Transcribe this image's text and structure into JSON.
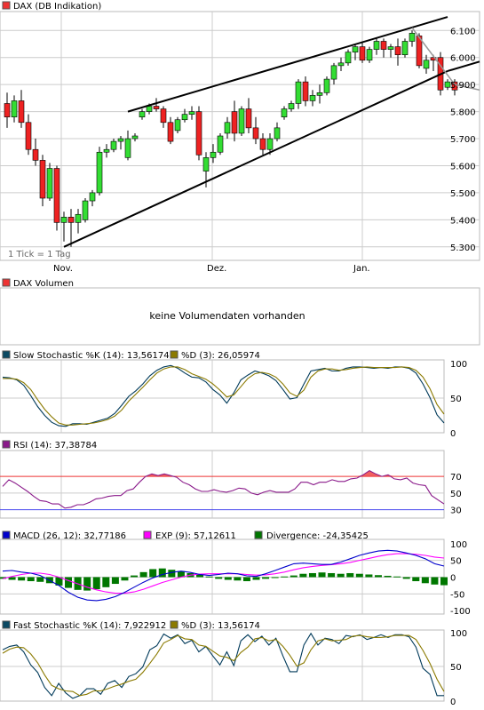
{
  "colors": {
    "up": "#33dd33",
    "down": "#ee2222",
    "grid": "#cccccc",
    "frame": "#bbbbbb",
    "line_dark": "#003a5a",
    "line_olive": "#8b7a00",
    "rsi": "#8a1a8a",
    "rsi_fill": "#ee4444",
    "rsi_70": "#ee3333",
    "rsi_30": "#4444ee",
    "macd": "#0000cc",
    "macd_ema": "#ff00ff",
    "divergence": "#007700",
    "trend": "#000000",
    "trend_gray": "#999999"
  },
  "x_labels": [
    "Nov.",
    "Dez.",
    "Jan."
  ],
  "main": {
    "legend": "DAX (DB Indikation)",
    "tick_note": "1 Tick = 1 Tag",
    "y_ticks": [
      "6.100",
      "6.000",
      "5.900",
      "5.800",
      "5.700",
      "5.600",
      "5.500",
      "5.400",
      "5.300"
    ]
  },
  "volume": {
    "legend": "DAX Volumen",
    "message": "keine Volumendaten vorhanden"
  },
  "slow_stoch": {
    "legend_k": "Slow Stochastic %K (14): 13,56174",
    "legend_d": "%D (3): 26,05974",
    "y_ticks": [
      "100",
      "50",
      "0"
    ]
  },
  "rsi": {
    "legend": "RSI (14): 37,38784",
    "y_ticks": [
      "70",
      "50",
      "30"
    ]
  },
  "macd": {
    "legend_macd": "MACD (26, 12): 32,77186",
    "legend_ema": "EXP (9): 57,12611",
    "legend_div": "Divergence: -24,35425",
    "y_ticks": [
      "100",
      "50",
      "0",
      "-50",
      "-100"
    ]
  },
  "fast_stoch": {
    "legend_k": "Fast Stochastic %K (14): 7,922912",
    "legend_d": "%D (3): 13,56174",
    "y_ticks": [
      "100",
      "50",
      "0"
    ]
  },
  "chart_data": [
    {
      "type": "candlestick",
      "title": "DAX (DB Indikation)",
      "ylim": [
        5250,
        6170
      ],
      "x_labels": [
        "Nov.",
        "Dez.",
        "Jan."
      ],
      "ohlc": [
        [
          5830,
          5870,
          5740,
          5780
        ],
        [
          5780,
          5860,
          5760,
          5840
        ],
        [
          5840,
          5880,
          5740,
          5760
        ],
        [
          5760,
          5790,
          5640,
          5660
        ],
        [
          5660,
          5700,
          5600,
          5620
        ],
        [
          5620,
          5640,
          5450,
          5480
        ],
        [
          5480,
          5610,
          5470,
          5590
        ],
        [
          5590,
          5600,
          5360,
          5390
        ],
        [
          5390,
          5430,
          5320,
          5410
        ],
        [
          5410,
          5440,
          5300,
          5390
        ],
        [
          5390,
          5440,
          5350,
          5420
        ],
        [
          5400,
          5480,
          5390,
          5470
        ],
        [
          5470,
          5510,
          5450,
          5500
        ],
        [
          5500,
          5670,
          5490,
          5650
        ],
        [
          5650,
          5680,
          5630,
          5660
        ],
        [
          5660,
          5700,
          5650,
          5690
        ],
        [
          5690,
          5710,
          5660,
          5700
        ],
        [
          5630,
          5730,
          5620,
          5700
        ],
        [
          5700,
          5720,
          5690,
          5710
        ],
        [
          5780,
          5810,
          5770,
          5800
        ],
        [
          5800,
          5830,
          5790,
          5820
        ],
        [
          5820,
          5850,
          5800,
          5810
        ],
        [
          5810,
          5820,
          5740,
          5760
        ],
        [
          5760,
          5780,
          5680,
          5690
        ],
        [
          5730,
          5780,
          5720,
          5770
        ],
        [
          5770,
          5810,
          5760,
          5790
        ],
        [
          5790,
          5820,
          5770,
          5800
        ],
        [
          5800,
          5820,
          5620,
          5640
        ],
        [
          5580,
          5650,
          5520,
          5630
        ],
        [
          5630,
          5680,
          5610,
          5650
        ],
        [
          5650,
          5720,
          5640,
          5710
        ],
        [
          5720,
          5780,
          5700,
          5760
        ],
        [
          5800,
          5840,
          5690,
          5720
        ],
        [
          5720,
          5820,
          5710,
          5810
        ],
        [
          5810,
          5850,
          5720,
          5740
        ],
        [
          5740,
          5780,
          5680,
          5700
        ],
        [
          5700,
          5720,
          5640,
          5660
        ],
        [
          5660,
          5720,
          5640,
          5700
        ],
        [
          5700,
          5760,
          5690,
          5740
        ],
        [
          5780,
          5820,
          5770,
          5810
        ],
        [
          5810,
          5840,
          5800,
          5830
        ],
        [
          5830,
          5920,
          5810,
          5910
        ],
        [
          5910,
          5930,
          5820,
          5840
        ],
        [
          5840,
          5880,
          5820,
          5860
        ],
        [
          5860,
          5900,
          5830,
          5870
        ],
        [
          5870,
          5930,
          5860,
          5920
        ],
        [
          5920,
          5980,
          5900,
          5970
        ],
        [
          5970,
          6000,
          5950,
          5980
        ],
        [
          5980,
          6030,
          5970,
          6020
        ],
        [
          6020,
          6050,
          5990,
          6040
        ],
        [
          6040,
          6060,
          5980,
          5990
        ],
        [
          5990,
          6040,
          5980,
          6030
        ],
        [
          6030,
          6070,
          6010,
          6060
        ],
        [
          6060,
          6070,
          6000,
          6030
        ],
        [
          6030,
          6050,
          6000,
          6040
        ],
        [
          6040,
          6070,
          5970,
          6010
        ],
        [
          6010,
          6070,
          6000,
          6060
        ],
        [
          6060,
          6100,
          6040,
          6090
        ],
        [
          6080,
          6090,
          5960,
          5970
        ],
        [
          5960,
          6010,
          5940,
          5990
        ],
        [
          6000,
          6010,
          5950,
          5990
        ],
        [
          6000,
          6020,
          5860,
          5880
        ],
        [
          5890,
          5920,
          5880,
          5910
        ],
        [
          5910,
          5920,
          5860,
          5880
        ]
      ],
      "trendlines": [
        {
          "from": [
            8,
            5300
          ],
          "to": [
            62,
            5950
          ]
        },
        {
          "from": [
            17,
            5800
          ],
          "to": [
            62,
            6150
          ]
        },
        {
          "from": [
            57,
            6110
          ],
          "to": [
            63,
            5900
          ]
        }
      ]
    },
    {
      "type": "line",
      "title": "Slow Stochastic",
      "ylim": [
        0,
        100
      ],
      "series": [
        {
          "name": "Slow Stochastic %K (14)",
          "values": [
            80,
            79,
            76,
            68,
            53,
            37,
            24,
            14,
            9,
            8,
            12,
            12,
            11,
            14,
            17,
            20,
            27,
            39,
            52,
            60,
            70,
            82,
            90,
            95,
            97,
            93,
            86,
            80,
            79,
            73,
            62,
            54,
            42,
            57,
            76,
            83,
            89,
            86,
            82,
            75,
            62,
            48,
            50,
            70,
            89,
            91,
            93,
            89,
            89,
            93,
            95,
            95,
            94,
            93,
            94,
            93,
            95,
            95,
            93,
            86,
            70,
            50,
            25,
            13
          ]
        },
        {
          "name": "%D (3)",
          "values": [
            78,
            78,
            77,
            72,
            62,
            47,
            33,
            22,
            13,
            10,
            10,
            11,
            12,
            13,
            15,
            18,
            23,
            32,
            45,
            55,
            65,
            76,
            86,
            92,
            95,
            95,
            91,
            85,
            81,
            77,
            70,
            61,
            51,
            54,
            66,
            78,
            85,
            87,
            85,
            80,
            70,
            57,
            52,
            61,
            80,
            89,
            92,
            92,
            90,
            91,
            93,
            94,
            95,
            94,
            94,
            94,
            94,
            95,
            94,
            90,
            80,
            63,
            40,
            26
          ]
        }
      ]
    },
    {
      "type": "line",
      "title": "RSI",
      "ylim": [
        20,
        100
      ],
      "series": [
        {
          "name": "RSI (14)",
          "values": [
            58,
            66,
            62,
            57,
            52,
            46,
            41,
            40,
            37,
            37,
            32,
            33,
            36,
            36,
            39,
            43,
            44,
            46,
            47,
            47,
            53,
            55,
            63,
            70,
            73,
            71,
            73,
            71,
            69,
            63,
            60,
            55,
            52,
            52,
            54,
            52,
            51,
            53,
            56,
            55,
            50,
            48,
            51,
            53,
            51,
            51,
            51,
            55,
            63,
            63,
            60,
            63,
            63,
            66,
            64,
            64,
            67,
            68,
            72,
            77,
            73,
            70,
            72,
            67,
            66,
            68,
            62,
            60,
            59,
            47,
            42,
            37
          ]
        }
      ],
      "reference_lines": [
        70,
        30
      ]
    },
    {
      "type": "bar_line",
      "title": "MACD",
      "ylim": [
        -110,
        110
      ],
      "series": [
        {
          "name": "MACD (26, 12)",
          "values": [
            18,
            20,
            15,
            12,
            5,
            -10,
            -25,
            -45,
            -60,
            -68,
            -70,
            -66,
            -58,
            -45,
            -30,
            -15,
            -2,
            8,
            14,
            18,
            14,
            8,
            5,
            8,
            12,
            10,
            4,
            2,
            10,
            20,
            30,
            40,
            42,
            40,
            38,
            38,
            45,
            55,
            65,
            72,
            78,
            80,
            78,
            72,
            65,
            55,
            40,
            33
          ]
        },
        {
          "name": "EXP (9)",
          "values": [
            -5,
            2,
            8,
            12,
            12,
            8,
            0,
            -10,
            -20,
            -30,
            -38,
            -44,
            -48,
            -48,
            -44,
            -36,
            -26,
            -16,
            -8,
            0,
            6,
            9,
            10,
            10,
            10,
            10,
            8,
            6,
            7,
            10,
            15,
            22,
            28,
            32,
            35,
            37,
            40,
            44,
            50,
            56,
            62,
            67,
            70,
            70,
            68,
            65,
            60,
            57
          ]
        },
        {
          "name": "Divergence",
          "values": [
            -5,
            -8,
            -10,
            -12,
            -14,
            -18,
            -25,
            -32,
            -38,
            -40,
            -36,
            -30,
            -20,
            -10,
            5,
            15,
            24,
            26,
            22,
            18,
            12,
            8,
            2,
            -5,
            -8,
            -10,
            -12,
            -8,
            -5,
            -2,
            2,
            5,
            10,
            12,
            14,
            12,
            10,
            12,
            10,
            8,
            6,
            4,
            2,
            -5,
            -12,
            -18,
            -22,
            -24
          ]
        }
      ]
    },
    {
      "type": "line",
      "title": "Fast Stochastic",
      "ylim": [
        0,
        100
      ],
      "series": [
        {
          "name": "Fast Stochastic %K (14)",
          "values": [
            75,
            80,
            82,
            72,
            53,
            42,
            20,
            8,
            26,
            12,
            4,
            8,
            18,
            18,
            10,
            26,
            30,
            20,
            36,
            40,
            50,
            75,
            81,
            98,
            92,
            97,
            84,
            89,
            72,
            80,
            66,
            53,
            72,
            52,
            88,
            97,
            87,
            95,
            82,
            92,
            66,
            43,
            43,
            82,
            99,
            82,
            92,
            90,
            84,
            96,
            94,
            97,
            90,
            93,
            97,
            93,
            97,
            97,
            94,
            79,
            48,
            39,
            8,
            8
          ]
        },
        {
          "name": "%D (3)",
          "values": [
            70,
            76,
            79,
            78,
            69,
            56,
            38,
            23,
            18,
            15,
            14,
            8,
            10,
            15,
            15,
            18,
            22,
            25,
            29,
            32,
            42,
            55,
            69,
            85,
            90,
            96,
            91,
            90,
            82,
            80,
            73,
            66,
            64,
            59,
            71,
            79,
            91,
            93,
            88,
            90,
            80,
            67,
            51,
            56,
            75,
            88,
            91,
            88,
            89,
            90,
            95,
            96,
            94,
            93,
            93,
            94,
            96,
            96,
            96,
            90,
            74,
            55,
            32,
            14
          ]
        }
      ]
    }
  ]
}
